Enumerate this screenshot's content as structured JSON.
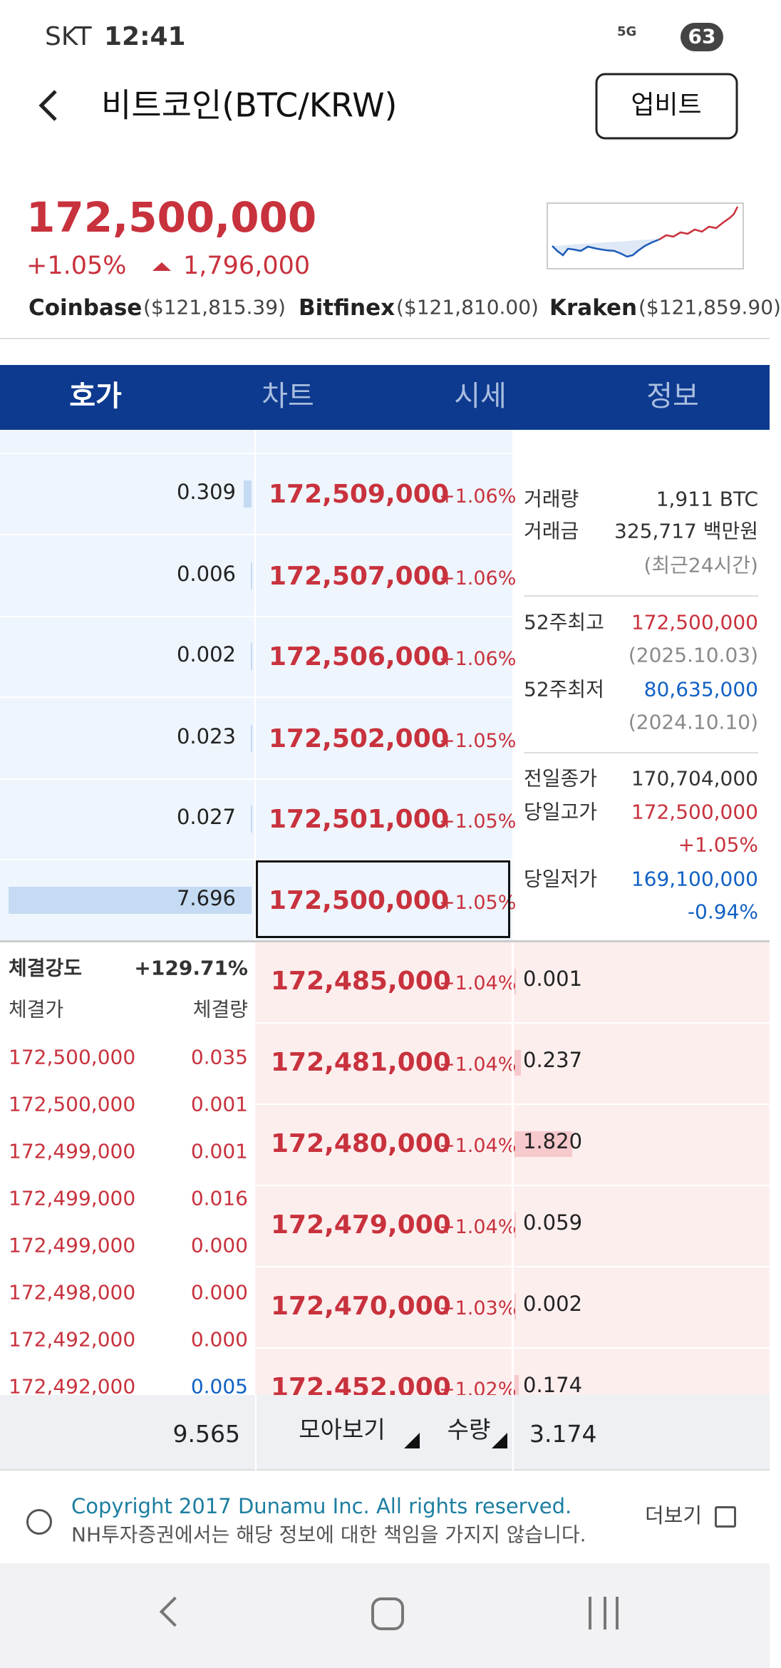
{
  "status": {
    "carrier": "SKT",
    "time": "12:41",
    "network": "5G",
    "battery": "63"
  },
  "header": {
    "title": "비트코인(BTC/KRW)",
    "button": "업비트"
  },
  "price": {
    "current": "172,500,000",
    "change_rate": "+1.05%",
    "change": "1,796,000"
  },
  "exchanges": [
    {
      "name": "Coinbase",
      "price": "($121,815.39)"
    },
    {
      "name": "Bitfinex",
      "price": "($121,810.00)"
    },
    {
      "name": "Kraken",
      "price": "($121,859.90)"
    }
  ],
  "tabs": [
    "호가",
    "차트",
    "시세",
    "정보"
  ],
  "asks": [
    {
      "qty": "0.309",
      "price": "172,509,000",
      "rate": "+1.06%"
    },
    {
      "qty": "0.006",
      "price": "172,507,000",
      "rate": "+1.06%"
    },
    {
      "qty": "0.002",
      "price": "172,506,000",
      "rate": "+1.06%"
    },
    {
      "qty": "0.023",
      "price": "172,502,000",
      "rate": "+1.05%"
    },
    {
      "qty": "0.027",
      "price": "172,501,000",
      "rate": "+1.05%"
    },
    {
      "qty": "7.696",
      "price": "172,500,000",
      "rate": "+1.05%"
    }
  ],
  "info": [
    {
      "label": "거래량",
      "value": "1,911 BTC",
      "color": "#333333"
    },
    {
      "label": "거래금",
      "value": "325,717 백만원",
      "color": "#333333"
    },
    {
      "value": "(최근24시간)",
      "color": "#8a8a8a"
    },
    {
      "label": "52주최고",
      "value": "172,500,000",
      "color": "#c8323d"
    },
    {
      "value": "(2025.10.03)",
      "color": "#8a8a8a"
    },
    {
      "label": "52주최저",
      "value": "80,635,000",
      "color": "#1261c4"
    },
    {
      "value": "(2024.10.10)",
      "color": "#8a8a8a"
    },
    {
      "label": "전일종가",
      "value": "170,704,000",
      "color": "#333333"
    },
    {
      "label": "당일고가",
      "value": "172,500,000",
      "color": "#c8323d"
    },
    {
      "value": "+1.05%",
      "color": "#c8323d"
    },
    {
      "label": "당일저가",
      "value": "169,100,000",
      "color": "#1261c4"
    },
    {
      "value": "-0.94%",
      "color": "#1261c4"
    }
  ],
  "bids": [
    {
      "price": "172,485,000",
      "rate": "+1.04%",
      "qty": "0.001"
    },
    {
      "price": "172,481,000",
      "rate": "+1.04%",
      "qty": "0.237"
    },
    {
      "price": "172,480,000",
      "rate": "+1.04%",
      "qty": "1.820"
    },
    {
      "price": "172,479,000",
      "rate": "+1.04%",
      "qty": "0.059"
    },
    {
      "price": "172,470,000",
      "rate": "+1.03%",
      "qty": "0.002"
    },
    {
      "price": "172,452,000",
      "rate": "+1.02%",
      "qty": "0.174"
    }
  ],
  "trades": {
    "strength_label": "체결강도",
    "strength": "+129.71%",
    "price_header": "체결가",
    "qty_header": "체결량",
    "rows": [
      {
        "price": "172,500,000",
        "qty": "0.035",
        "color": "#c8323d"
      },
      {
        "price": "172,500,000",
        "qty": "0.001",
        "color": "#c8323d"
      },
      {
        "price": "172,499,000",
        "qty": "0.001",
        "color": "#c8323d"
      },
      {
        "price": "172,499,000",
        "qty": "0.016",
        "color": "#c8323d"
      },
      {
        "price": "172,499,000",
        "qty": "0.000",
        "color": "#c8323d"
      },
      {
        "price": "172,498,000",
        "qty": "0.000",
        "color": "#c8323d"
      },
      {
        "price": "172,492,000",
        "qty": "0.000",
        "color": "#c8323d"
      },
      {
        "price": "172,492,000",
        "qty": "0.005",
        "color": "#1261c4"
      }
    ]
  },
  "totals": {
    "ask_total": "9.565",
    "group_button": "모아보기",
    "unit_button": "수량",
    "bid_total": "3.174"
  },
  "footer": {
    "copyright": "Copyright 2017 Dunamu Inc. All rights reserved.",
    "disclaimer": "NH투자증권에서는 해당 정보에 대한 책임을 가지지 않습니다.",
    "more": "더보기"
  }
}
